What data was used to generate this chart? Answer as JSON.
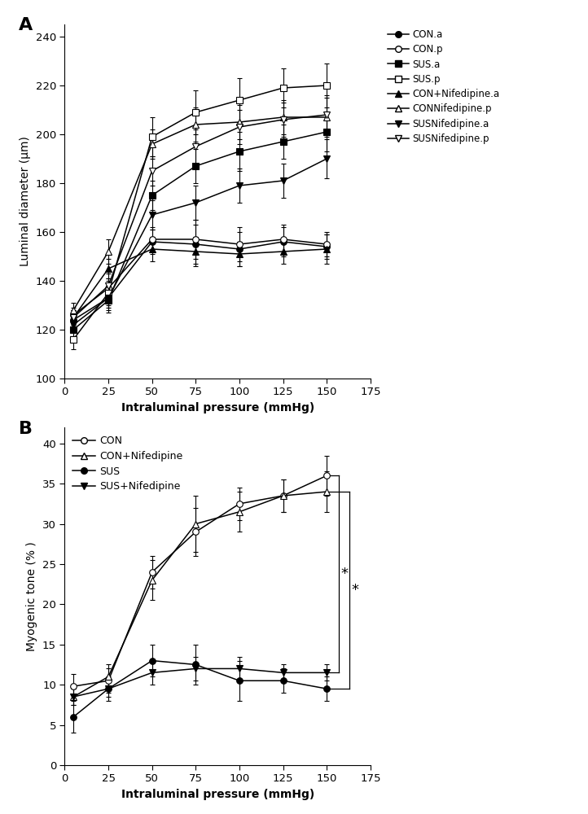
{
  "pressures": [
    5,
    25,
    50,
    75,
    100,
    125,
    150
  ],
  "panel_A": {
    "CON_a": {
      "y": [
        124,
        133,
        156,
        155,
        153,
        156,
        154
      ],
      "yerr": [
        3,
        4,
        5,
        8,
        7,
        6,
        5
      ]
    },
    "CON_p": {
      "y": [
        126,
        137,
        157,
        157,
        155,
        157,
        155
      ],
      "yerr": [
        3,
        4,
        5,
        8,
        7,
        6,
        5
      ]
    },
    "SUS_a": {
      "y": [
        120,
        132,
        175,
        187,
        193,
        197,
        201
      ],
      "yerr": [
        3,
        5,
        6,
        7,
        8,
        7,
        8
      ]
    },
    "SUS_p": {
      "y": [
        116,
        135,
        199,
        209,
        214,
        219,
        220
      ],
      "yerr": [
        4,
        5,
        8,
        9,
        9,
        8,
        9
      ]
    },
    "CON_Nif_a": {
      "y": [
        125,
        145,
        153,
        152,
        151,
        152,
        153
      ],
      "yerr": [
        3,
        4,
        5,
        6,
        5,
        5,
        6
      ]
    },
    "CON_Nif_p": {
      "y": [
        128,
        152,
        196,
        204,
        205,
        207,
        207
      ],
      "yerr": [
        3,
        5,
        6,
        7,
        7,
        7,
        8
      ]
    },
    "SUS_Nif_a": {
      "y": [
        122,
        133,
        167,
        172,
        179,
        181,
        190
      ],
      "yerr": [
        3,
        5,
        6,
        7,
        7,
        7,
        8
      ]
    },
    "SUS_Nif_p": {
      "y": [
        125,
        138,
        185,
        195,
        203,
        206,
        208
      ],
      "yerr": [
        3,
        5,
        6,
        7,
        7,
        7,
        8
      ]
    }
  },
  "panel_B": {
    "CON": {
      "y": [
        9.8,
        10.5,
        24.0,
        29.0,
        32.5,
        33.5,
        36.0
      ],
      "yerr": [
        1.5,
        1.5,
        2.0,
        3.0,
        2.0,
        2.0,
        2.5
      ]
    },
    "CON_Nif": {
      "y": [
        8.5,
        11.0,
        23.0,
        30.0,
        31.5,
        33.5,
        34.0
      ],
      "yerr": [
        1.0,
        1.5,
        2.5,
        3.5,
        2.5,
        2.0,
        2.5
      ]
    },
    "SUS": {
      "y": [
        6.0,
        9.5,
        13.0,
        12.5,
        10.5,
        10.5,
        9.5
      ],
      "yerr": [
        2.0,
        1.5,
        2.0,
        2.5,
        2.5,
        1.5,
        1.5
      ]
    },
    "SUS_Nif": {
      "y": [
        8.5,
        9.5,
        11.5,
        12.0,
        12.0,
        11.5,
        11.5
      ],
      "yerr": [
        1.0,
        1.0,
        1.5,
        1.5,
        1.5,
        1.0,
        1.0
      ]
    }
  },
  "xlabel": "Intraluminal pressure (mmHg)",
  "ylabel_A": "Luminal diameter (μm)",
  "ylabel_B": "Myogenic tone (% )",
  "xlim": [
    0,
    175
  ],
  "xticks": [
    0,
    25,
    50,
    75,
    100,
    125,
    150,
    175
  ],
  "ylim_A": [
    100,
    245
  ],
  "yticks_A": [
    100,
    120,
    140,
    160,
    180,
    200,
    220,
    240
  ],
  "ylim_B": [
    0,
    42
  ],
  "yticks_B": [
    0,
    5,
    10,
    15,
    20,
    25,
    30,
    35,
    40
  ],
  "legend_A": [
    "CON.a",
    "CON.p",
    "SUS.a",
    "SUS.p",
    "CON+Nifedipine.a",
    "CONNifedipine.p",
    "SUSNifedipine.a",
    "SUSNifedipine.p"
  ],
  "legend_B": [
    "CON",
    "CON+Nifedipine",
    "SUS",
    "SUS+Nifedipine"
  ]
}
